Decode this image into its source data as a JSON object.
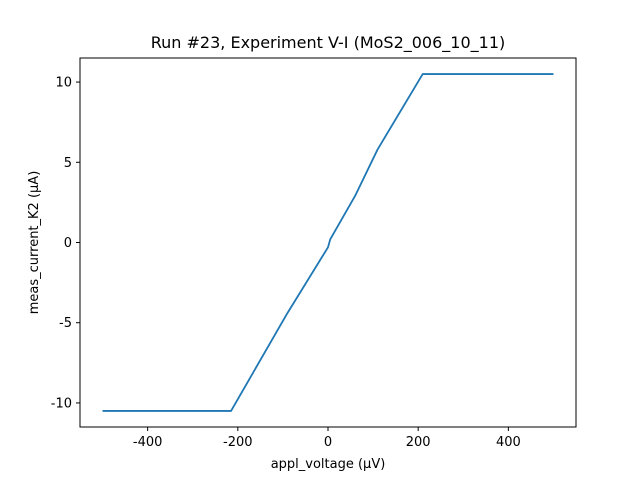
{
  "chart_data": {
    "type": "line",
    "title": "Run #23, Experiment V-I (MoS2_006_10_11)",
    "xlabel": "appl_voltage (µV)",
    "ylabel": "meas_current_K2 (µA)",
    "xlim": [
      -550,
      550
    ],
    "ylim": [
      -11.5,
      11.5
    ],
    "xticks": [
      -400,
      -200,
      0,
      200,
      400
    ],
    "yticks": [
      -10,
      -5,
      0,
      5,
      10
    ],
    "xtick_labels": [
      "-400",
      "-200",
      "0",
      "200",
      "400"
    ],
    "ytick_labels": [
      "-10",
      "-5",
      "0",
      "5",
      "10"
    ],
    "grid": false,
    "series": [
      {
        "color": "#1f77b4",
        "x": [
          -500,
          -215,
          -90,
          0,
          5,
          60,
          110,
          210,
          500
        ],
        "y": [
          -10.5,
          -10.5,
          -4.4,
          -0.3,
          0.2,
          2.9,
          5.8,
          10.5,
          10.5
        ]
      }
    ]
  }
}
